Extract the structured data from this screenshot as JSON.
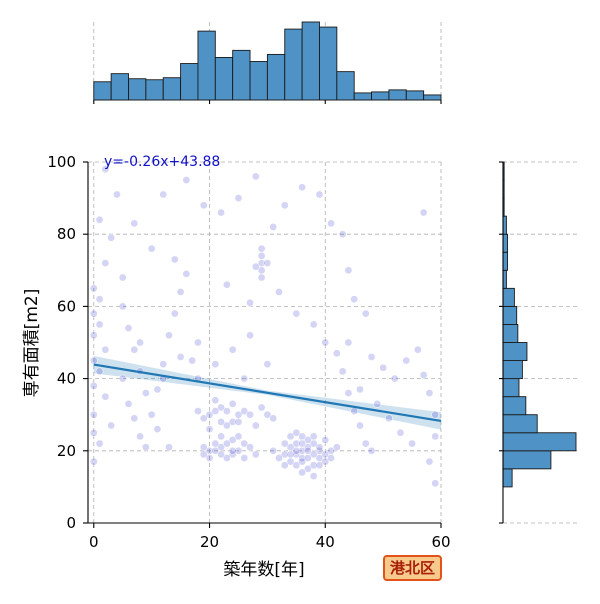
{
  "chart_data": {
    "type": "scatter",
    "xlabel": "築年数[年]",
    "ylabel": "専有面積[m2]",
    "xlim": [
      -1,
      60
    ],
    "ylim": [
      0,
      100
    ],
    "x_ticks": [
      0,
      20,
      40,
      60
    ],
    "y_ticks": [
      0,
      20,
      40,
      60,
      80,
      100
    ],
    "grid": true,
    "annotation": "y=-0.26x+43.88",
    "regression": {
      "slope": -0.26,
      "intercept": 43.88,
      "x_range": [
        0,
        60
      ]
    },
    "badge": "港北区",
    "colors": {
      "points": "#3a3ad0",
      "regression": "#1f77b4",
      "histogram": "#4f93c6",
      "badge_border": "#e0531a",
      "badge_fill": "#f7c98b"
    },
    "x_histogram": {
      "bin_edges": [
        0,
        3,
        6,
        9,
        12,
        15,
        18,
        21,
        24,
        27,
        30,
        33,
        36,
        39,
        42,
        45,
        48,
        51,
        54,
        57,
        60
      ],
      "counts": [
        18,
        26,
        21,
        20,
        22,
        36,
        68,
        42,
        49,
        38,
        45,
        70,
        77,
        72,
        28,
        7,
        8,
        10,
        9,
        5
      ]
    },
    "y_histogram": {
      "bin_edges": [
        10,
        15,
        20,
        25,
        30,
        35,
        40,
        45,
        50,
        55,
        60,
        65,
        70,
        75,
        80,
        85,
        90,
        95,
        100
      ],
      "counts": [
        8,
        42,
        64,
        30,
        20,
        14,
        17,
        21,
        13,
        12,
        10,
        3,
        4,
        4,
        3,
        1,
        1,
        1
      ]
    },
    "points": [
      [
        38,
        22
      ],
      [
        37,
        21
      ],
      [
        35,
        19
      ],
      [
        36,
        18
      ],
      [
        39,
        20
      ],
      [
        34,
        17
      ],
      [
        40,
        23
      ],
      [
        33,
        19
      ],
      [
        36,
        24
      ],
      [
        38,
        16
      ],
      [
        35,
        22
      ],
      [
        37,
        15
      ],
      [
        39,
        18
      ],
      [
        34,
        21
      ],
      [
        41,
        20
      ],
      [
        32,
        18
      ],
      [
        36,
        20
      ],
      [
        38,
        19
      ],
      [
        35,
        16
      ],
      [
        37,
        23
      ],
      [
        40,
        17
      ],
      [
        33,
        22
      ],
      [
        36,
        14
      ],
      [
        39,
        21
      ],
      [
        34,
        19
      ],
      [
        37,
        18
      ],
      [
        35,
        25
      ],
      [
        38,
        24
      ],
      [
        40,
        19
      ],
      [
        42,
        21
      ],
      [
        31,
        20
      ],
      [
        36,
        17
      ],
      [
        38,
        13
      ],
      [
        33,
        16
      ],
      [
        35,
        20
      ],
      [
        39,
        16
      ],
      [
        37,
        20
      ],
      [
        34,
        24
      ],
      [
        41,
        18
      ],
      [
        36,
        22
      ],
      [
        20,
        20
      ],
      [
        22,
        21
      ],
      [
        24,
        19
      ],
      [
        21,
        22
      ],
      [
        25,
        20
      ],
      [
        23,
        18
      ],
      [
        19,
        21
      ],
      [
        26,
        22
      ],
      [
        22,
        19
      ],
      [
        24,
        23
      ],
      [
        20,
        18
      ],
      [
        27,
        21
      ],
      [
        21,
        20
      ],
      [
        25,
        24
      ],
      [
        23,
        22
      ],
      [
        19,
        19
      ],
      [
        26,
        18
      ],
      [
        22,
        24
      ],
      [
        24,
        20
      ],
      [
        28,
        19
      ],
      [
        20,
        30
      ],
      [
        22,
        32
      ],
      [
        24,
        28
      ],
      [
        21,
        31
      ],
      [
        25,
        30
      ],
      [
        23,
        27
      ],
      [
        19,
        29
      ],
      [
        26,
        31
      ],
      [
        22,
        28
      ],
      [
        24,
        33
      ],
      [
        20,
        26
      ],
      [
        27,
        30
      ],
      [
        21,
        34
      ],
      [
        25,
        28
      ],
      [
        23,
        31
      ],
      [
        30,
        30
      ],
      [
        28,
        27
      ],
      [
        29,
        32
      ],
      [
        18,
        31
      ],
      [
        31,
        29
      ],
      [
        29,
        76
      ],
      [
        29,
        74
      ],
      [
        29,
        72
      ],
      [
        29,
        70
      ],
      [
        29,
        68
      ],
      [
        30,
        72
      ],
      [
        28,
        71
      ],
      [
        2,
        98
      ],
      [
        4,
        91
      ],
      [
        1,
        84
      ],
      [
        3,
        79
      ],
      [
        2,
        72
      ],
      [
        0,
        65
      ],
      [
        1,
        62
      ],
      [
        0,
        58
      ],
      [
        1,
        55
      ],
      [
        0,
        52
      ],
      [
        2,
        48
      ],
      [
        0,
        45
      ],
      [
        1,
        42
      ],
      [
        0,
        38
      ],
      [
        0,
        30
      ],
      [
        0,
        25
      ],
      [
        0,
        17
      ],
      [
        1,
        22
      ],
      [
        2,
        35
      ],
      [
        3,
        27
      ],
      [
        5,
        60
      ],
      [
        6,
        54
      ],
      [
        7,
        48
      ],
      [
        8,
        42
      ],
      [
        5,
        40
      ],
      [
        6,
        33
      ],
      [
        7,
        29
      ],
      [
        8,
        24
      ],
      [
        9,
        21
      ],
      [
        10,
        30
      ],
      [
        11,
        37
      ],
      [
        12,
        44
      ],
      [
        13,
        52
      ],
      [
        14,
        58
      ],
      [
        15,
        64
      ],
      [
        16,
        69
      ],
      [
        17,
        45
      ],
      [
        18,
        40
      ],
      [
        11,
        26
      ],
      [
        13,
        21
      ],
      [
        45,
        62
      ],
      [
        47,
        58
      ],
      [
        44,
        50
      ],
      [
        48,
        46
      ],
      [
        50,
        43
      ],
      [
        46,
        37
      ],
      [
        49,
        33
      ],
      [
        51,
        29
      ],
      [
        53,
        25
      ],
      [
        55,
        22
      ],
      [
        52,
        40
      ],
      [
        54,
        45
      ],
      [
        56,
        48
      ],
      [
        57,
        41
      ],
      [
        58,
        36
      ],
      [
        59,
        30
      ],
      [
        59,
        24
      ],
      [
        58,
        17
      ],
      [
        59,
        11
      ],
      [
        57,
        86
      ],
      [
        44,
        70
      ],
      [
        43,
        80
      ],
      [
        41,
        83
      ],
      [
        39,
        91
      ],
      [
        36,
        93
      ],
      [
        33,
        88
      ],
      [
        31,
        82
      ],
      [
        28,
        96
      ],
      [
        25,
        90
      ],
      [
        22,
        86
      ],
      [
        19,
        88
      ],
      [
        16,
        95
      ],
      [
        12,
        91
      ],
      [
        10,
        76
      ],
      [
        7,
        83
      ],
      [
        5,
        68
      ],
      [
        14,
        73
      ],
      [
        23,
        66
      ],
      [
        27,
        61
      ],
      [
        32,
        64
      ],
      [
        35,
        58
      ],
      [
        38,
        55
      ],
      [
        40,
        50
      ],
      [
        42,
        47
      ],
      [
        43,
        42
      ],
      [
        44,
        36
      ],
      [
        45,
        31
      ],
      [
        46,
        27
      ],
      [
        47,
        22
      ],
      [
        48,
        20
      ],
      [
        27,
        52
      ],
      [
        24,
        48
      ],
      [
        21,
        44
      ],
      [
        18,
        50
      ],
      [
        15,
        46
      ],
      [
        12,
        40
      ],
      [
        9,
        36
      ],
      [
        8,
        50
      ],
      [
        26,
        40
      ],
      [
        30,
        44
      ]
    ]
  }
}
